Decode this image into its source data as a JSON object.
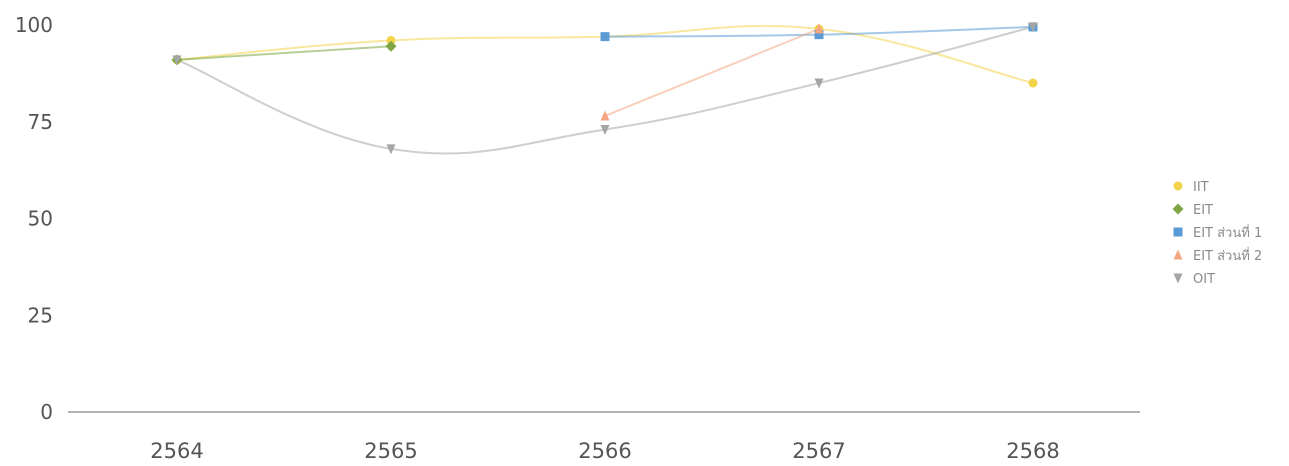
{
  "chart_data": {
    "type": "line",
    "title": "",
    "xlabel": "",
    "ylabel": "",
    "x": [
      "2564",
      "2565",
      "2566",
      "2567",
      "2568"
    ],
    "ylim": [
      0,
      100
    ],
    "yticks": [
      0,
      25,
      50,
      75,
      100
    ],
    "grid": false,
    "legend_position": "right",
    "smooth": true,
    "series": [
      {
        "name": "IIT",
        "color": "#f2d34b",
        "marker": "circle",
        "values": [
          91,
          96,
          97,
          99,
          85
        ]
      },
      {
        "name": "EIT",
        "color": "#7ea642",
        "marker": "diamond",
        "values": [
          91,
          94.5,
          null,
          null,
          null
        ]
      },
      {
        "name": "EIT ส่วนที่ 1",
        "color": "#5b9bd5",
        "marker": "square",
        "values": [
          null,
          null,
          97,
          97.5,
          99.5
        ]
      },
      {
        "name": "EIT ส่วนที่ 2",
        "color": "#f4a582",
        "marker": "triangle",
        "values": [
          null,
          null,
          76.5,
          99,
          null
        ]
      },
      {
        "name": "OIT",
        "color": "#a5a5a5",
        "marker": "triangle-down",
        "values": [
          91,
          68,
          73,
          85,
          99.5
        ]
      }
    ]
  }
}
